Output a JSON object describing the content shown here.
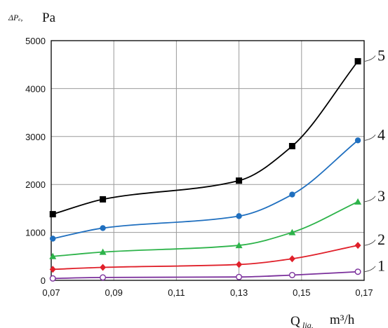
{
  "chart_data": {
    "type": "line",
    "ylabel_symbol": "ΔPₑ,",
    "ylabel_unit": "Pa",
    "xlabel_symbol": "Q",
    "xlabel_sub": "liq,",
    "xlabel_unit": "m³/h",
    "xlim": [
      0.07,
      0.17
    ],
    "ylim": [
      0,
      5000
    ],
    "xticks": [
      0.07,
      0.09,
      0.11,
      0.13,
      0.15,
      0.17
    ],
    "xtick_labels": [
      "0,07",
      "0,09",
      "0,11",
      "0,13",
      "0,15",
      "0,17"
    ],
    "yticks": [
      0,
      1000,
      2000,
      3000,
      4000,
      5000
    ],
    "ytick_labels": [
      "0",
      "1000",
      "2000",
      "3000",
      "4000",
      "5000"
    ],
    "grid": true,
    "series": [
      {
        "name": "1",
        "color": "#7a2f9b",
        "marker": "circle-open",
        "x": [
          0.0705,
          0.0865,
          0.13,
          0.147,
          0.168
        ],
        "y": [
          40,
          60,
          70,
          110,
          180
        ]
      },
      {
        "name": "2",
        "color": "#e0202a",
        "marker": "diamond",
        "x": [
          0.0705,
          0.0865,
          0.13,
          0.147,
          0.168
        ],
        "y": [
          230,
          270,
          330,
          450,
          730
        ]
      },
      {
        "name": "3",
        "color": "#2db34a",
        "marker": "triangle",
        "x": [
          0.0705,
          0.0865,
          0.13,
          0.147,
          0.168
        ],
        "y": [
          500,
          590,
          730,
          1000,
          1640
        ]
      },
      {
        "name": "4",
        "color": "#1f6fbf",
        "marker": "circle",
        "x": [
          0.0705,
          0.0865,
          0.13,
          0.147,
          0.168
        ],
        "y": [
          870,
          1090,
          1340,
          1790,
          2920
        ]
      },
      {
        "name": "5",
        "color": "#000000",
        "marker": "square",
        "x": [
          0.0705,
          0.0865,
          0.13,
          0.147,
          0.168
        ],
        "y": [
          1380,
          1690,
          2080,
          2800,
          4570
        ]
      }
    ]
  }
}
